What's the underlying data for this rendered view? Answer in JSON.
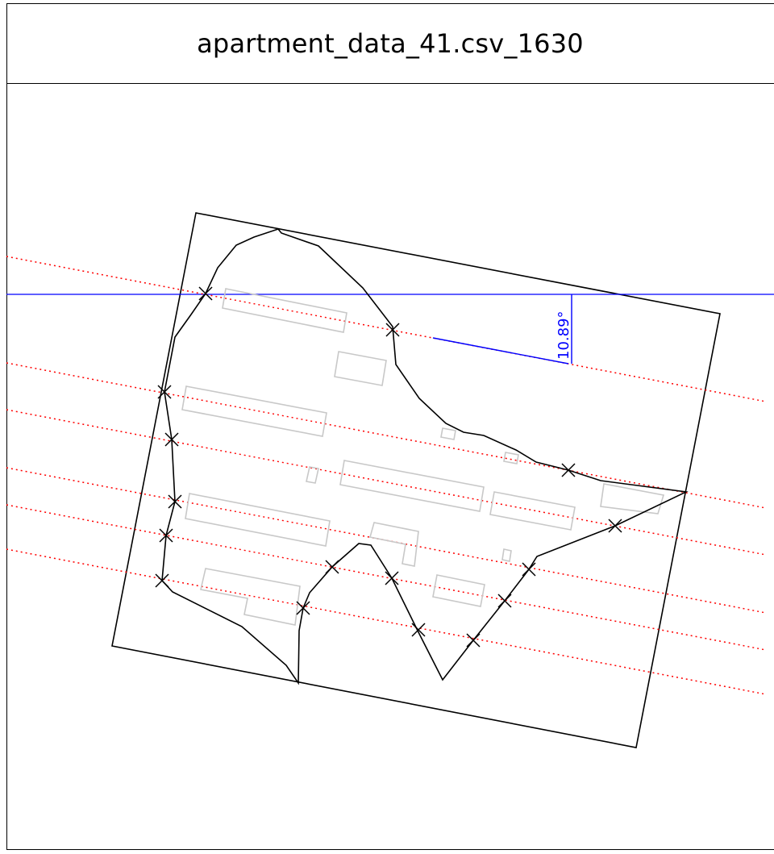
{
  "header": {
    "title": "apartment_data_41.csv_1630"
  },
  "angle_annotation": {
    "label": "10.89°",
    "color": "#0000ff"
  },
  "colors": {
    "outline": "#000000",
    "buildings": "#c8c8c8",
    "sun_lines": "#ff0000",
    "reference": "#0000ff"
  }
}
